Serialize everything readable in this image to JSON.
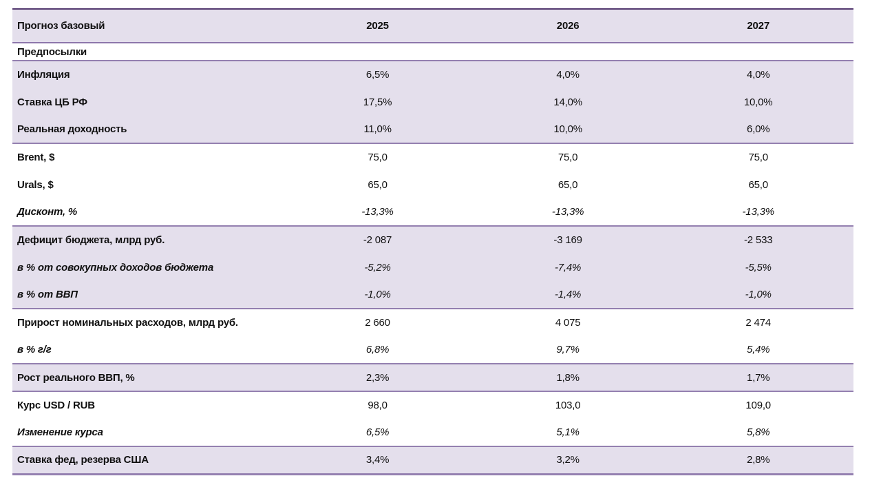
{
  "chart_data": {
    "type": "table",
    "title": "Прогноз базовый",
    "years": [
      "2025",
      "2026",
      "2027"
    ],
    "colors": {
      "band_fill": "#e4dfec",
      "rule_purple": "#9480b0",
      "rule_top_dark": "#53396f",
      "text": "#101010"
    },
    "rows": [
      {
        "label": "Предпосылки",
        "section": true,
        "shaded": false,
        "italic": false,
        "rule_above": true,
        "values": []
      },
      {
        "label": "Инфляция",
        "section": false,
        "shaded": true,
        "italic": false,
        "rule_above": true,
        "values": [
          "6,5%",
          "4,0%",
          "4,0%"
        ]
      },
      {
        "label": "Ставка ЦБ РФ",
        "section": false,
        "shaded": true,
        "italic": false,
        "rule_above": false,
        "values": [
          "17,5%",
          "14,0%",
          "10,0%"
        ]
      },
      {
        "label": "Реальная доходность",
        "section": false,
        "shaded": true,
        "italic": false,
        "rule_above": false,
        "values": [
          "11,0%",
          "10,0%",
          "6,0%"
        ]
      },
      {
        "label": "Brent, $",
        "section": false,
        "shaded": false,
        "italic": false,
        "rule_above": true,
        "values": [
          "75,0",
          "75,0",
          "75,0"
        ]
      },
      {
        "label": "Urals, $",
        "section": false,
        "shaded": false,
        "italic": false,
        "rule_above": false,
        "values": [
          "65,0",
          "65,0",
          "65,0"
        ]
      },
      {
        "label": "Дисконт, %",
        "section": false,
        "shaded": false,
        "italic": true,
        "rule_above": false,
        "values": [
          "-13,3%",
          "-13,3%",
          "-13,3%"
        ]
      },
      {
        "label": "Дефицит бюджета, млрд руб.",
        "section": false,
        "shaded": true,
        "italic": false,
        "rule_above": true,
        "values": [
          "-2 087",
          "-3 169",
          "-2 533"
        ]
      },
      {
        "label": "в % от совокупных доходов бюджета",
        "section": false,
        "shaded": true,
        "italic": true,
        "rule_above": false,
        "values": [
          "-5,2%",
          "-7,4%",
          "-5,5%"
        ]
      },
      {
        "label": "в % от ВВП",
        "section": false,
        "shaded": true,
        "italic": true,
        "rule_above": false,
        "values": [
          "-1,0%",
          "-1,4%",
          "-1,0%"
        ]
      },
      {
        "label": "Прирост номинальных расходов, млрд руб.",
        "section": false,
        "shaded": false,
        "italic": false,
        "rule_above": true,
        "values": [
          "2 660",
          "4 075",
          "2 474"
        ]
      },
      {
        "label": "в % г/г",
        "section": false,
        "shaded": false,
        "italic": true,
        "rule_above": false,
        "values": [
          "6,8%",
          "9,7%",
          "5,4%"
        ]
      },
      {
        "label": "Рост реального ВВП, %",
        "section": false,
        "shaded": true,
        "italic": false,
        "rule_above": true,
        "values": [
          "2,3%",
          "1,8%",
          "1,7%"
        ]
      },
      {
        "label": "Курс USD / RUB",
        "section": false,
        "shaded": false,
        "italic": false,
        "rule_above": true,
        "values": [
          "98,0",
          "103,0",
          "109,0"
        ]
      },
      {
        "label": "Изменение курса",
        "section": false,
        "shaded": false,
        "italic": true,
        "rule_above": false,
        "values": [
          "6,5%",
          "5,1%",
          "5,8%"
        ]
      },
      {
        "label": "Ставка фед, резерва США",
        "section": false,
        "shaded": true,
        "italic": false,
        "rule_above": true,
        "values": [
          "3,4%",
          "3,2%",
          "2,8%"
        ]
      }
    ]
  }
}
